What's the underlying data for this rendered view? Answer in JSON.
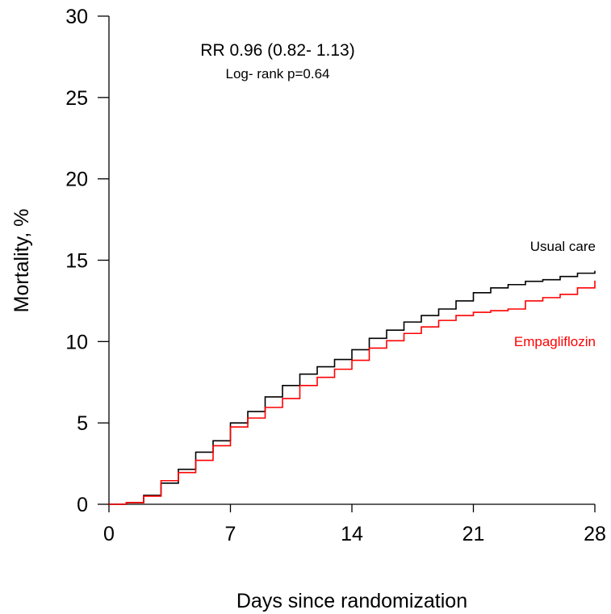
{
  "chart_data": {
    "type": "line",
    "step": true,
    "xlabel": "Days since randomization",
    "ylabel": "Mortality, %",
    "xlim": [
      0,
      28
    ],
    "ylim": [
      0,
      30
    ],
    "xticks": [
      0,
      7,
      14,
      21,
      28
    ],
    "yticks": [
      0,
      5,
      10,
      15,
      20,
      25,
      30
    ],
    "grid": false,
    "annotations": [
      {
        "text": "RR 0.96 (0.82- 1.13)"
      },
      {
        "text": "Log- rank p=0.64"
      }
    ],
    "series": [
      {
        "name": "Usual care",
        "color": "#000000",
        "x": [
          0,
          1,
          2,
          3,
          4,
          5,
          6,
          7,
          8,
          9,
          10,
          11,
          12,
          13,
          14,
          15,
          16,
          17,
          18,
          19,
          20,
          21,
          22,
          23,
          24,
          25,
          26,
          27,
          28
        ],
        "y": [
          0,
          0.1,
          0.55,
          1.3,
          2.15,
          3.2,
          3.9,
          5.0,
          5.7,
          6.6,
          7.3,
          8.0,
          8.45,
          8.9,
          9.5,
          10.2,
          10.7,
          11.2,
          11.6,
          12.0,
          12.5,
          13.0,
          13.3,
          13.5,
          13.7,
          13.8,
          14.0,
          14.2,
          14.35
        ]
      },
      {
        "name": "Empagliflozin",
        "color": "#ff0000",
        "x": [
          0,
          1,
          2,
          3,
          4,
          5,
          6,
          7,
          8,
          9,
          10,
          11,
          12,
          13,
          14,
          15,
          16,
          17,
          18,
          19,
          20,
          21,
          22,
          23,
          24,
          25,
          26,
          27,
          28
        ],
        "y": [
          0,
          0.1,
          0.5,
          1.45,
          1.95,
          2.7,
          3.6,
          4.75,
          5.3,
          5.95,
          6.5,
          7.3,
          7.8,
          8.3,
          8.85,
          9.6,
          10.05,
          10.5,
          10.9,
          11.3,
          11.6,
          11.8,
          11.9,
          12.0,
          12.5,
          12.7,
          12.9,
          13.3,
          13.75
        ]
      }
    ]
  }
}
